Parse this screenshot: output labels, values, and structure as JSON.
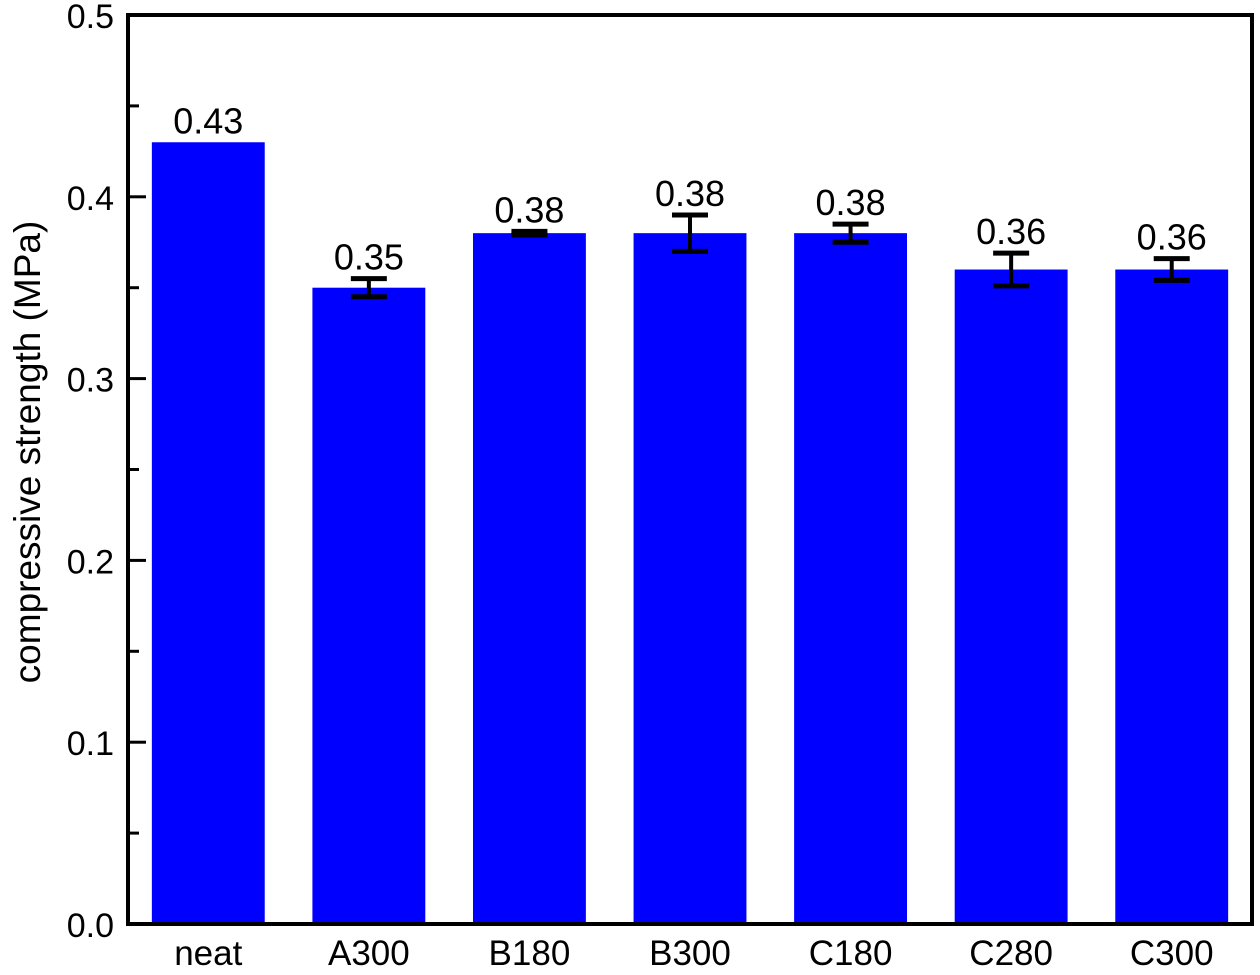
{
  "chart_data": {
    "type": "bar",
    "title": "",
    "xlabel": "",
    "ylabel": "compressive strength (MPa)",
    "categories": [
      "neat",
      "A300",
      "B180",
      "B300",
      "C180",
      "C280",
      "C300"
    ],
    "values": [
      0.43,
      0.35,
      0.38,
      0.38,
      0.38,
      0.36,
      0.36
    ],
    "errors": [
      0,
      0.005,
      0.001,
      0.01,
      0.005,
      0.009,
      0.006
    ],
    "value_labels": [
      "0.43",
      "0.35",
      "0.38",
      "0.38",
      "0.38",
      "0.36",
      "0.36"
    ],
    "ylim": [
      0.0,
      0.5
    ],
    "yticks": [
      0.0,
      0.1,
      0.2,
      0.3,
      0.4,
      0.5
    ],
    "ytick_labels": [
      "0.0",
      "0.1",
      "0.2",
      "0.3",
      "0.4",
      "0.5"
    ],
    "minor_ytick_step": 0.05,
    "grid": false,
    "legend": "none",
    "bar_color": "#0000fe",
    "error_bar_color": "#000000",
    "axis_color": "#000000"
  }
}
